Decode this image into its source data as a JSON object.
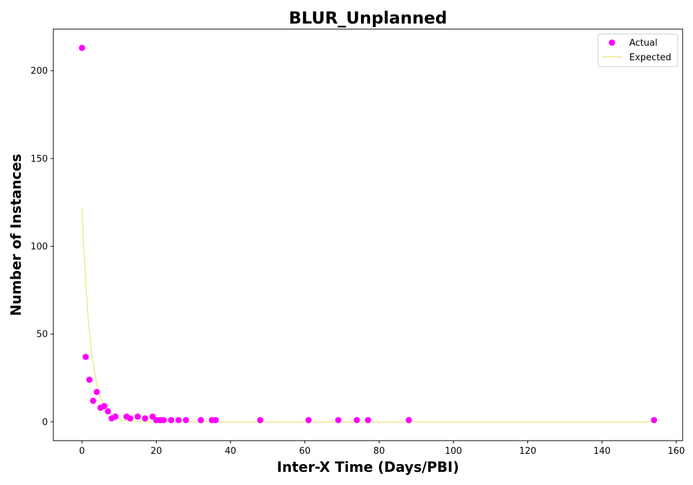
{
  "chart_data": {
    "type": "scatter",
    "title": "BLUR_Unplanned",
    "xlabel": "Inter-X Time (Days/PBI)",
    "ylabel": "Number of Instances",
    "xlim": [
      -7.7,
      161.7
    ],
    "ylim": [
      -10.7,
      223.7
    ],
    "xticks": [
      0,
      20,
      40,
      60,
      80,
      100,
      120,
      140,
      160
    ],
    "yticks": [
      0,
      50,
      100,
      150,
      200
    ],
    "grid": false,
    "legend_position": "top-right",
    "series": [
      {
        "name": "Actual",
        "kind": "scatter",
        "color": "#ff00ff",
        "points": [
          [
            0,
            213
          ],
          [
            1,
            37
          ],
          [
            2,
            24
          ],
          [
            3,
            12
          ],
          [
            4,
            17
          ],
          [
            5,
            8
          ],
          [
            6,
            9
          ],
          [
            7,
            6
          ],
          [
            8,
            2
          ],
          [
            9,
            3
          ],
          [
            12,
            3
          ],
          [
            13,
            2
          ],
          [
            15,
            3
          ],
          [
            17,
            2
          ],
          [
            19,
            3
          ],
          [
            20,
            1
          ],
          [
            21,
            1
          ],
          [
            22,
            1
          ],
          [
            24,
            1
          ],
          [
            26,
            1
          ],
          [
            28,
            1
          ],
          [
            32,
            1
          ],
          [
            35,
            1
          ],
          [
            36,
            1
          ],
          [
            48,
            1
          ],
          [
            61,
            1
          ],
          [
            69,
            1
          ],
          [
            74,
            1
          ],
          [
            77,
            1
          ],
          [
            88,
            1
          ],
          [
            154,
            1
          ]
        ]
      },
      {
        "name": "Expected",
        "kind": "line",
        "color": "#f0e68c",
        "model": "exponential",
        "amplitude": 122,
        "rate": 0.43,
        "x_range": [
          0,
          154
        ]
      }
    ]
  }
}
